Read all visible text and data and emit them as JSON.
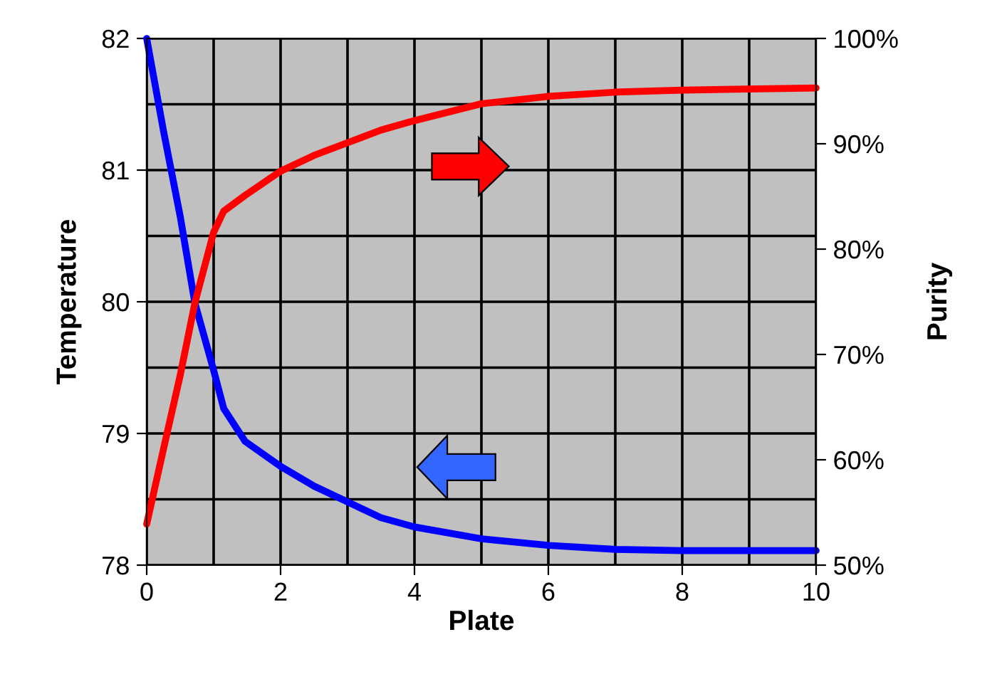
{
  "chart_data": {
    "type": "line",
    "xlabel": "Plate",
    "ylabel": "Temperature",
    "y2label": "Purity",
    "x": [
      0,
      0.25,
      0.5,
      0.72,
      1,
      1.15,
      1.47,
      2,
      2.5,
      3,
      3.5,
      4,
      5,
      6,
      7,
      8,
      10
    ],
    "series": [
      {
        "color": "#0000ff",
        "values": [
          82,
          81.3,
          80.65,
          79.99,
          79.48,
          79.19,
          78.94,
          78.75,
          78.6,
          78.48,
          78.36,
          78.29,
          78.2,
          78.15,
          78.12,
          78.11,
          78.11
        ]
      },
      {
        "color": "#ff0000",
        "axis": "y2",
        "values": [
          53.9,
          61,
          68,
          74.9,
          81.6,
          83.6,
          85.1,
          87.4,
          88.9,
          90.1,
          91.3,
          92.2,
          93.8,
          94.5,
          94.9,
          95.1,
          95.3
        ]
      }
    ],
    "xlim": [
      0,
      10
    ],
    "xticks": [
      0,
      2,
      4,
      6,
      8,
      10
    ],
    "ylim": [
      78,
      82
    ],
    "yticks": [
      78,
      79,
      80,
      81,
      82
    ],
    "y2lim": [
      50,
      100
    ],
    "y2ticks": [
      {
        "value": 50,
        "label": "50%"
      },
      {
        "value": 60,
        "label": "60%"
      },
      {
        "value": 70,
        "label": "70%"
      },
      {
        "value": 80,
        "label": "80%"
      },
      {
        "value": 90,
        "label": "90%"
      },
      {
        "value": 100,
        "label": "100%"
      }
    ],
    "grid": true,
    "marker": "none",
    "line_style": "solid"
  }
}
